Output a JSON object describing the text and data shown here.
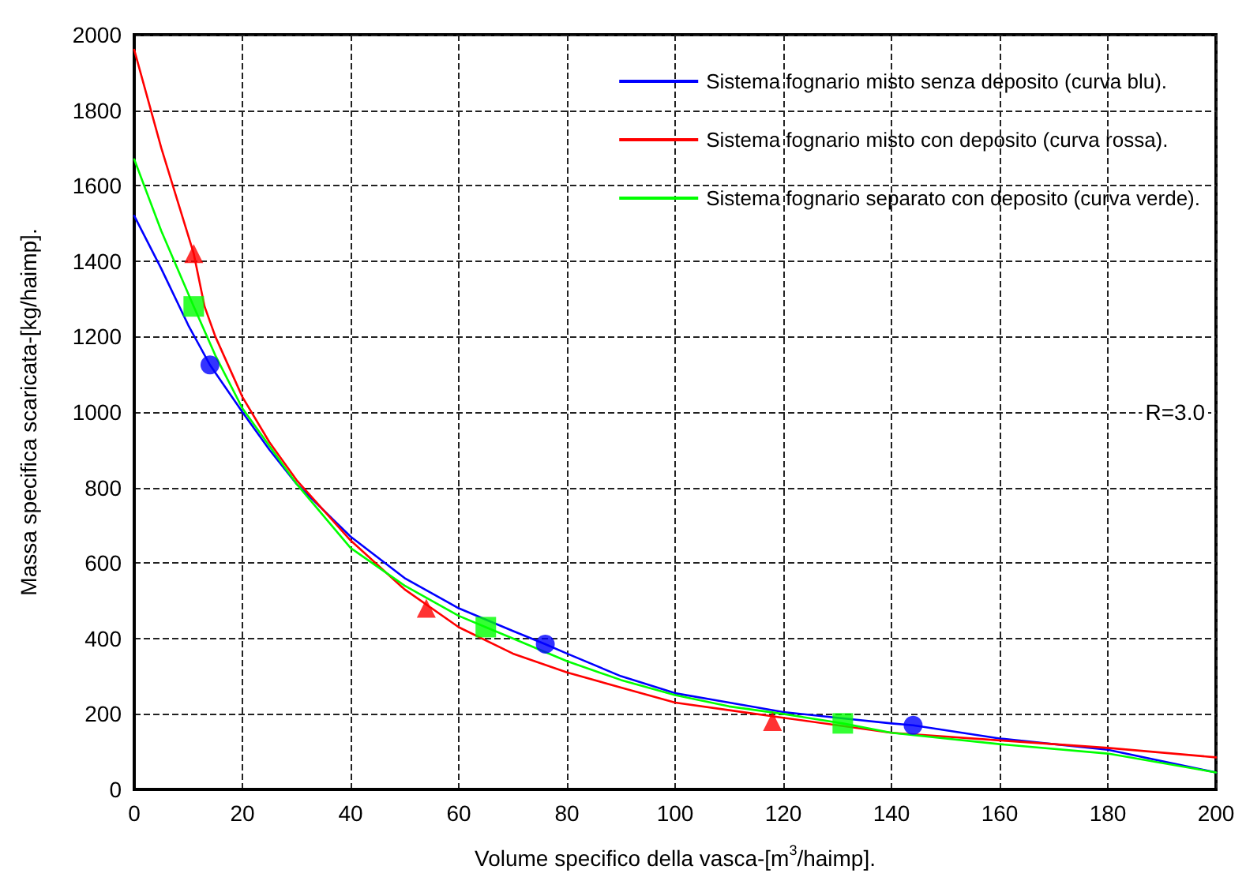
{
  "chart_data": {
    "type": "line",
    "xlabel": "Volume specifico della vasca-[m$^{3}$/haimp].",
    "ylabel": "Massa specifica scaricata-[kg/haimp].",
    "xlim": [
      0,
      200
    ],
    "xticks": [
      0,
      20,
      40,
      60,
      80,
      100,
      120,
      140,
      160,
      180,
      200
    ],
    "ylim": [
      0,
      2000
    ],
    "yticks": [
      0,
      200,
      400,
      600,
      800,
      1000,
      1200,
      1400,
      1600,
      1800,
      2000
    ],
    "grid": true,
    "legend": "top right",
    "line_style": "solid",
    "annotations": [
      "R=3.0"
    ],
    "series": [
      {
        "name": "Sistema fognario misto senza deposito (curva blu).",
        "color": "#0000ff",
        "x": [
          0,
          5,
          10,
          14,
          20,
          25,
          30,
          40,
          50,
          60,
          70,
          76,
          80,
          90,
          100,
          110,
          120,
          130,
          140,
          144,
          160,
          180,
          200
        ],
        "values": [
          1520,
          1380,
          1230,
          1125,
          1000,
          900,
          810,
          670,
          560,
          480,
          420,
          385,
          360,
          300,
          255,
          230,
          205,
          190,
          175,
          170,
          135,
          105,
          45
        ]
      },
      {
        "name": "Sistema fognario misto con deposito (curva rossa).",
        "color": "#ff0000",
        "x": [
          0,
          5,
          11,
          13,
          15,
          20,
          25,
          30,
          40,
          50,
          60,
          70,
          80,
          90,
          100,
          110,
          120,
          140,
          160,
          180,
          200
        ],
        "values": [
          1960,
          1700,
          1420,
          1280,
          1200,
          1040,
          920,
          820,
          660,
          530,
          430,
          360,
          310,
          270,
          230,
          210,
          190,
          150,
          130,
          110,
          85
        ]
      },
      {
        "name": "Sistema fognario separato con deposito (curva verde).",
        "color": "#00ff00",
        "x": [
          0,
          5,
          11,
          15,
          20,
          25,
          30,
          40,
          50,
          60,
          65,
          70,
          80,
          90,
          100,
          110,
          120,
          131,
          140,
          160,
          180,
          200
        ],
        "values": [
          1670,
          1480,
          1280,
          1150,
          1010,
          910,
          810,
          640,
          540,
          460,
          430,
          400,
          340,
          290,
          250,
          220,
          200,
          175,
          150,
          120,
          95,
          45
        ]
      },
      {
        "type": "scatter",
        "color": "#0000ff",
        "marker": "circle",
        "x": [
          14,
          76,
          144
        ],
        "values": [
          1125,
          385,
          170
        ]
      },
      {
        "type": "scatter",
        "color": "#ff0000",
        "marker": "triangle",
        "x": [
          11,
          54,
          118
        ],
        "values": [
          1420,
          480,
          180
        ]
      },
      {
        "type": "scatter",
        "color": "#00ff00",
        "marker": "square",
        "x": [
          11,
          65,
          131
        ],
        "values": [
          1280,
          430,
          175
        ]
      }
    ]
  }
}
